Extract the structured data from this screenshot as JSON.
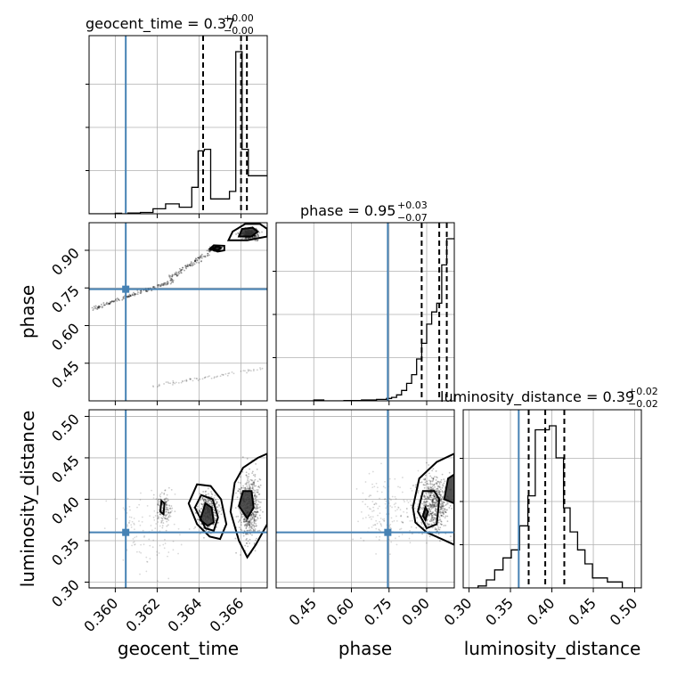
{
  "chart_data": {
    "type": "corner",
    "parameters": [
      "geocent_time",
      "phase",
      "luminosity_distance"
    ],
    "ranges": {
      "geocent_time": [
        0.35875,
        0.36725
      ],
      "phase": [
        0.3,
        1.01
      ],
      "luminosity_distance": [
        0.293,
        0.508
      ]
    },
    "ticks": {
      "geocent_time": [
        0.36,
        0.362,
        0.364,
        0.366
      ],
      "phase": [
        0.45,
        0.6,
        0.75,
        0.9
      ],
      "luminosity_distance": [
        0.3,
        0.35,
        0.4,
        0.45,
        0.5
      ]
    },
    "tick_labels": {
      "geocent_time": [
        "0.360",
        "0.362",
        "0.364",
        "0.366"
      ],
      "phase": [
        "0.45",
        "0.60",
        "0.75",
        "0.90"
      ],
      "luminosity_distance": [
        "0.30",
        "0.35",
        "0.40",
        "0.45",
        "0.50"
      ]
    },
    "axis_labels": {
      "geocent_time": "geocent_time",
      "phase": "phase",
      "luminosity_distance": "luminosity_distance"
    },
    "truths": {
      "geocent_time": 0.3605,
      "phase": 0.745,
      "luminosity_distance": 0.36
    },
    "titles": {
      "geocent_time": {
        "text": "geocent_time = 0.37",
        "plus": "+0.00",
        "minus": "−0.00"
      },
      "phase": {
        "text": "phase = 0.95",
        "plus": "+0.03",
        "minus": "−0.07"
      },
      "luminosity_distance": {
        "text": "luminosity_distance = 0.39",
        "plus": "+0.02",
        "minus": "−0.02"
      }
    },
    "quantile_lines": {
      "geocent_time": [
        0.36419,
        0.366,
        0.36628
      ],
      "phase": [
        0.88,
        0.95,
        0.98
      ],
      "luminosity_distance": [
        0.372,
        0.392,
        0.415
      ]
    },
    "histograms": {
      "geocent_time": {
        "edges": [
          0.35875,
          0.36,
          0.3603,
          0.3606,
          0.3612,
          0.3618,
          0.3624,
          0.36305,
          0.36365,
          0.36395,
          0.36425,
          0.36455,
          0.36485,
          0.36545,
          0.36575,
          0.36605,
          0.36635,
          0.36665,
          0.36725
        ],
        "counts": [
          0.0,
          0.003,
          0.0,
          0.005,
          0.008,
          0.03,
          0.06,
          0.04,
          0.16,
          0.38,
          0.39,
          0.09,
          0.09,
          0.135,
          0.98,
          0.39,
          0.23,
          0.23
        ]
      },
      "phase": {
        "edges": [
          0.3,
          0.45,
          0.49,
          0.57,
          0.64,
          0.7,
          0.74,
          0.76,
          0.78,
          0.8,
          0.82,
          0.84,
          0.86,
          0.88,
          0.9,
          0.92,
          0.94,
          0.96,
          0.98,
          0.995,
          1.01
        ],
        "counts": [
          0.0,
          0.005,
          0.0,
          0.002,
          0.005,
          0.008,
          0.014,
          0.02,
          0.034,
          0.06,
          0.1,
          0.15,
          0.24,
          0.33,
          0.44,
          0.51,
          0.56,
          0.78,
          0.93,
          0.93
        ]
      },
      "luminosity_distance": {
        "edges": [
          0.293,
          0.311,
          0.321,
          0.331,
          0.341,
          0.351,
          0.361,
          0.371,
          0.38,
          0.389,
          0.397,
          0.405,
          0.414,
          0.422,
          0.431,
          0.44,
          0.449,
          0.467,
          0.485,
          0.508
        ],
        "counts": [
          0.0,
          0.01,
          0.04,
          0.09,
          0.15,
          0.19,
          0.31,
          0.46,
          0.79,
          0.79,
          0.81,
          0.65,
          0.4,
          0.28,
          0.19,
          0.12,
          0.05,
          0.03,
          0.0
        ]
      }
    },
    "contours": {
      "geocent_time|phase": [
        {
          "level": "inner",
          "filled": true,
          "points": [
            [
              0.36465,
              0.905
            ],
            [
              0.36485,
              0.915
            ],
            [
              0.36505,
              0.91
            ],
            [
              0.3649,
              0.9
            ],
            [
              0.36465,
              0.905
            ]
          ]
        },
        {
          "level": "outer",
          "filled": false,
          "points": [
            [
              0.3645,
              0.905
            ],
            [
              0.3647,
              0.92
            ],
            [
              0.3652,
              0.918
            ],
            [
              0.3652,
              0.9
            ],
            [
              0.3649,
              0.895
            ],
            [
              0.3645,
              0.905
            ]
          ]
        },
        {
          "level": "inner",
          "filled": true,
          "points": [
            [
              0.3659,
              0.955
            ],
            [
              0.36605,
              0.985
            ],
            [
              0.36655,
              0.99
            ],
            [
              0.3668,
              0.975
            ],
            [
              0.3665,
              0.955
            ],
            [
              0.3659,
              0.955
            ]
          ]
        },
        {
          "level": "outer",
          "filled": false,
          "points": [
            [
              0.3654,
              0.94
            ],
            [
              0.3656,
              0.975
            ],
            [
              0.3662,
              1.005
            ],
            [
              0.3669,
              1.005
            ],
            [
              0.36725,
              0.985
            ],
            [
              0.36725,
              0.955
            ],
            [
              0.3663,
              0.94
            ],
            [
              0.3654,
              0.94
            ]
          ]
        }
      ],
      "geocent_time|luminosity_distance": [
        {
          "level": "inner",
          "filled": true,
          "points": [
            [
              0.36405,
              0.375
            ],
            [
              0.3643,
              0.395
            ],
            [
              0.3646,
              0.39
            ],
            [
              0.3647,
              0.372
            ],
            [
              0.3644,
              0.368
            ],
            [
              0.36405,
              0.375
            ]
          ]
        },
        {
          "level": "mid",
          "filled": false,
          "points": [
            [
              0.3638,
              0.39
            ],
            [
              0.3641,
              0.405
            ],
            [
              0.36465,
              0.4
            ],
            [
              0.3649,
              0.378
            ],
            [
              0.3647,
              0.362
            ],
            [
              0.3643,
              0.365
            ],
            [
              0.3638,
              0.39
            ]
          ]
        },
        {
          "level": "outer",
          "filled": false,
          "points": [
            [
              0.3635,
              0.395
            ],
            [
              0.3639,
              0.418
            ],
            [
              0.36455,
              0.416
            ],
            [
              0.36505,
              0.4
            ],
            [
              0.3653,
              0.37
            ],
            [
              0.365,
              0.352
            ],
            [
              0.3645,
              0.355
            ],
            [
              0.3639,
              0.37
            ],
            [
              0.3635,
              0.395
            ]
          ]
        },
        {
          "level": "inner",
          "filled": true,
          "points": [
            [
              0.3659,
              0.392
            ],
            [
              0.3661,
              0.41
            ],
            [
              0.3665,
              0.41
            ],
            [
              0.3666,
              0.39
            ],
            [
              0.3663,
              0.377
            ],
            [
              0.3659,
              0.392
            ]
          ]
        },
        {
          "level": "outer",
          "filled": false,
          "points": [
            [
              0.3655,
              0.385
            ],
            [
              0.3657,
              0.42
            ],
            [
              0.3661,
              0.438
            ],
            [
              0.3668,
              0.45
            ],
            [
              0.36725,
              0.455
            ],
            [
              0.36725,
              0.37
            ],
            [
              0.3667,
              0.345
            ],
            [
              0.3663,
              0.33
            ],
            [
              0.3659,
              0.35
            ],
            [
              0.3655,
              0.385
            ]
          ]
        },
        {
          "level": "small",
          "filled": false,
          "points": [
            [
              0.36215,
              0.385
            ],
            [
              0.3622,
              0.398
            ],
            [
              0.36235,
              0.395
            ],
            [
              0.3623,
              0.382
            ],
            [
              0.36215,
              0.385
            ]
          ]
        }
      ],
      "phase|luminosity_distance": [
        {
          "level": "inner",
          "filled": true,
          "points": [
            [
              0.885,
              0.38
            ],
            [
              0.895,
              0.39
            ],
            [
              0.905,
              0.385
            ],
            [
              0.895,
              0.375
            ],
            [
              0.885,
              0.38
            ]
          ]
        },
        {
          "level": "mid",
          "filled": false,
          "points": [
            [
              0.865,
              0.385
            ],
            [
              0.885,
              0.41
            ],
            [
              0.93,
              0.41
            ],
            [
              0.95,
              0.4
            ],
            [
              0.94,
              0.37
            ],
            [
              0.9,
              0.365
            ],
            [
              0.865,
              0.385
            ]
          ]
        },
        {
          "level": "outer",
          "filled": false,
          "points": [
            [
              0.845,
              0.39
            ],
            [
              0.87,
              0.425
            ],
            [
              0.94,
              0.445
            ],
            [
              1.01,
              0.455
            ],
            [
              1.01,
              0.345
            ],
            [
              0.96,
              0.352
            ],
            [
              0.9,
              0.36
            ],
            [
              0.855,
              0.372
            ],
            [
              0.845,
              0.39
            ]
          ]
        },
        {
          "level": "inner",
          "filled": true,
          "points": [
            [
              0.97,
              0.4
            ],
            [
              0.985,
              0.425
            ],
            [
              1.01,
              0.43
            ],
            [
              1.01,
              0.395
            ],
            [
              0.97,
              0.4
            ]
          ]
        }
      ]
    },
    "grid": true
  }
}
